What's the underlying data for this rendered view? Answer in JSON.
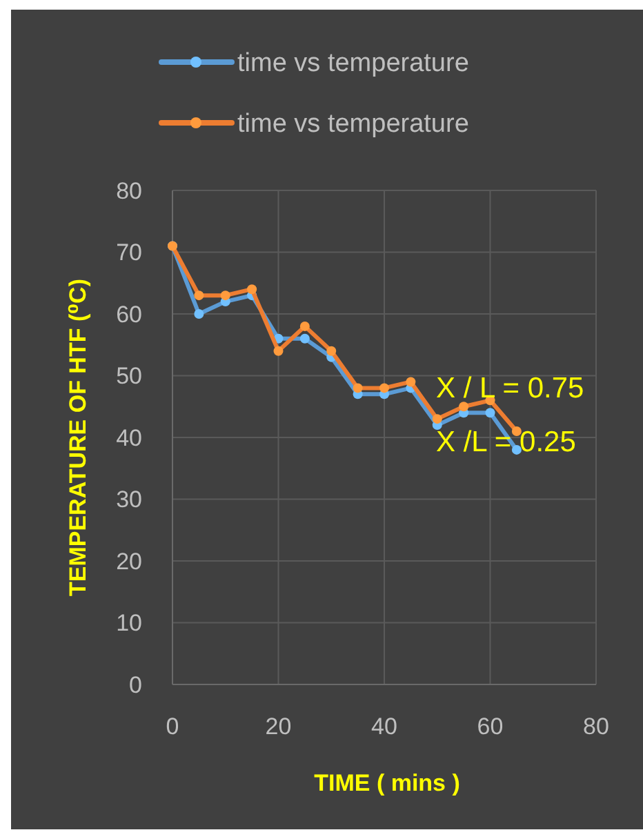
{
  "chart_data": {
    "type": "line",
    "xlabel": "TIME ( mins )",
    "ylabel": "TEMPERATURE OF HTF (⁰C)",
    "x": [
      0,
      5,
      10,
      15,
      20,
      25,
      30,
      35,
      40,
      45,
      50,
      55,
      60,
      65
    ],
    "series": [
      {
        "name": "time vs temperature",
        "color": "#5b9bd5",
        "values": [
          71,
          60,
          62,
          63,
          56,
          56,
          53,
          47,
          47,
          48,
          42,
          44,
          44,
          38
        ]
      },
      {
        "name": "time vs temperature",
        "color": "#ed7d31",
        "values": [
          71,
          63,
          63,
          64,
          54,
          58,
          54,
          48,
          48,
          49,
          43,
          45,
          46,
          41
        ]
      }
    ],
    "annotations": [
      "X / L = 0.75",
      "X /L = 0.25"
    ],
    "xlim": [
      0,
      80
    ],
    "xticks": [
      0,
      20,
      40,
      60,
      80
    ],
    "ylim": [
      0,
      80
    ],
    "yticks": [
      0,
      10,
      20,
      30,
      40,
      50,
      60,
      70,
      80
    ],
    "grid": true,
    "legend": "top",
    "marker": "circle",
    "line_style": "solid"
  }
}
